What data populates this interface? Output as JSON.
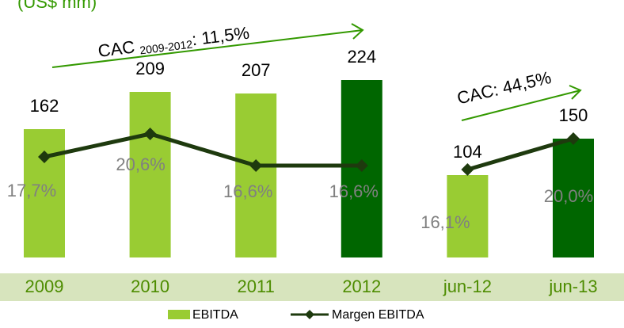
{
  "chart_data": {
    "type": "bar",
    "title": "(US$ mm)",
    "categories": [
      "2009",
      "2010",
      "2011",
      "2012",
      "jun-12",
      "jun-13"
    ],
    "series": [
      {
        "name": "EBITDA",
        "color": "#99cc33",
        "colors": [
          "#99cc33",
          "#99cc33",
          "#99cc33",
          "#006600",
          "#99cc33",
          "#006600"
        ],
        "values": [
          162,
          209,
          207,
          224,
          104,
          150
        ]
      },
      {
        "name": "Margen EBITDA",
        "color": "#1e3a0e",
        "axis": "y2",
        "values": [
          17.7,
          20.6,
          16.6,
          16.6,
          16.1,
          20.0
        ],
        "value_labels": [
          "17,7%",
          "20,6%",
          "16,6%",
          "16,6%",
          "16,1%",
          "20,0%"
        ],
        "line_breaks": [
          4
        ]
      }
    ],
    "ylim": [
      0,
      300
    ],
    "y2lim": [
      5,
      35
    ],
    "annotations": [
      {
        "parts": [
          "CAC",
          "2009-2012",
          ": 11,5%"
        ]
      },
      {
        "parts": [
          "CAC: 44,5%"
        ]
      }
    ]
  }
}
